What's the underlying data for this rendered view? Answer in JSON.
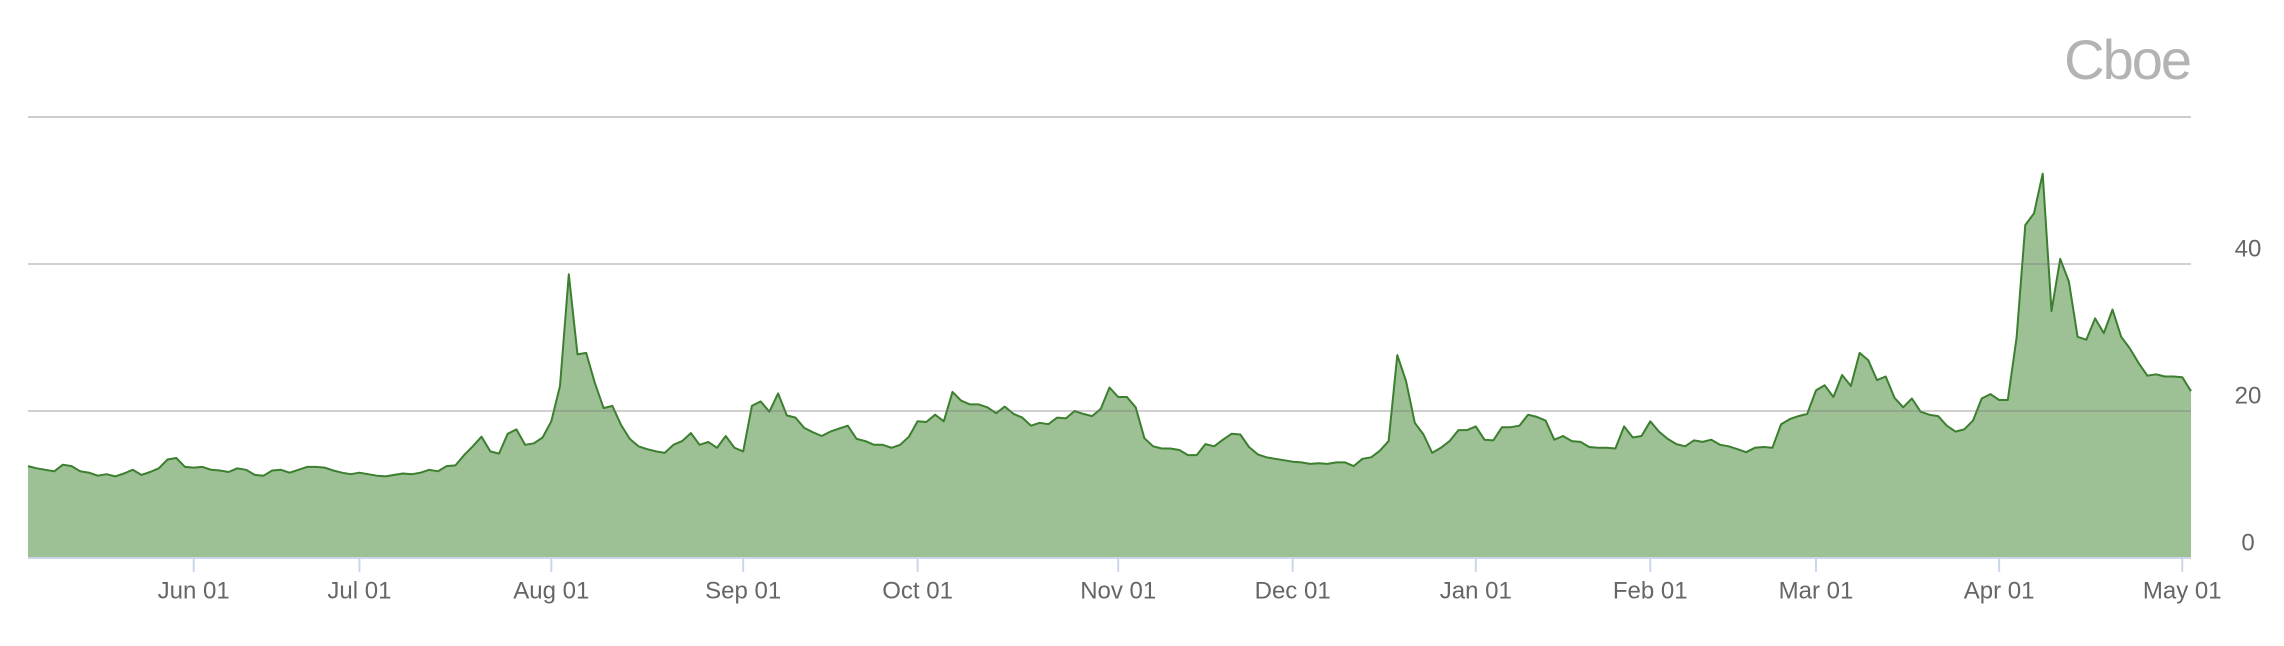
{
  "chart_data": {
    "type": "area",
    "logo": "Cboe",
    "categories": [
      null,
      null,
      null,
      null,
      null,
      null,
      null,
      null,
      null,
      null,
      null,
      null,
      null,
      null,
      null,
      null,
      null,
      null,
      null,
      "Jun 01",
      null,
      null,
      null,
      null,
      null,
      null,
      null,
      null,
      null,
      null,
      null,
      null,
      null,
      null,
      null,
      null,
      null,
      null,
      "Jul 01",
      null,
      null,
      null,
      null,
      null,
      null,
      null,
      null,
      null,
      null,
      null,
      null,
      null,
      null,
      null,
      null,
      null,
      null,
      null,
      null,
      null,
      "Aug 01",
      null,
      null,
      null,
      null,
      null,
      null,
      null,
      null,
      null,
      null,
      null,
      null,
      null,
      null,
      null,
      null,
      null,
      null,
      null,
      null,
      null,
      "Sep 01",
      null,
      null,
      null,
      null,
      null,
      null,
      null,
      null,
      null,
      null,
      null,
      null,
      null,
      null,
      null,
      null,
      null,
      null,
      null,
      "Oct 01",
      null,
      null,
      null,
      null,
      null,
      null,
      null,
      null,
      null,
      null,
      null,
      null,
      null,
      null,
      null,
      null,
      null,
      null,
      null,
      null,
      null,
      null,
      "Nov 01",
      null,
      null,
      null,
      null,
      null,
      null,
      null,
      null,
      null,
      null,
      null,
      null,
      null,
      null,
      null,
      null,
      null,
      null,
      null,
      "Dec 01",
      null,
      null,
      null,
      null,
      null,
      null,
      null,
      null,
      null,
      null,
      null,
      null,
      null,
      null,
      null,
      null,
      null,
      null,
      null,
      null,
      "Jan 01",
      null,
      null,
      null,
      null,
      null,
      null,
      null,
      null,
      null,
      null,
      null,
      null,
      null,
      null,
      null,
      null,
      null,
      null,
      null,
      "Feb 01",
      null,
      null,
      null,
      null,
      null,
      null,
      null,
      null,
      null,
      null,
      null,
      null,
      null,
      null,
      null,
      null,
      null,
      null,
      "Mar 01",
      null,
      null,
      null,
      null,
      null,
      null,
      null,
      null,
      null,
      null,
      null,
      null,
      null,
      null,
      null,
      null,
      null,
      null,
      null,
      null,
      "Apr 01",
      null,
      null,
      null,
      null,
      null,
      null,
      null,
      null,
      null,
      null,
      null,
      null,
      null,
      null,
      null,
      null,
      null,
      null,
      null,
      null,
      "May 01",
      null
    ],
    "values": [
      12.5,
      12.2,
      12.0,
      11.8,
      12.7,
      12.5,
      11.8,
      11.6,
      11.2,
      11.4,
      11.1,
      11.5,
      12.0,
      11.3,
      11.7,
      12.2,
      13.4,
      13.6,
      12.4,
      12.3,
      12.4,
      12.0,
      11.9,
      11.7,
      12.2,
      12.0,
      11.3,
      11.2,
      11.9,
      12.0,
      11.6,
      12.0,
      12.4,
      12.4,
      12.3,
      11.9,
      11.6,
      11.4,
      11.6,
      11.4,
      11.2,
      11.1,
      11.3,
      11.5,
      11.4,
      11.6,
      12.0,
      11.8,
      12.5,
      12.6,
      14.0,
      15.2,
      16.5,
      14.5,
      14.2,
      16.9,
      17.5,
      15.4,
      15.6,
      16.4,
      18.6,
      23.4,
      38.6,
      27.7,
      27.9,
      23.8,
      20.4,
      20.7,
      18.1,
      16.2,
      15.2,
      14.8,
      14.5,
      14.3,
      15.4,
      15.9,
      17.0,
      15.4,
      15.8,
      15.0,
      16.6,
      15.0,
      14.5,
      20.7,
      21.3,
      19.9,
      22.4,
      19.4,
      19.1,
      17.7,
      17.1,
      16.6,
      17.2,
      17.6,
      18.0,
      16.2,
      15.9,
      15.4,
      15.4,
      15.0,
      15.4,
      16.5,
      18.6,
      18.5,
      19.5,
      18.6,
      22.6,
      21.4,
      20.9,
      20.9,
      20.5,
      19.7,
      20.6,
      19.6,
      19.1,
      18.0,
      18.4,
      18.2,
      19.1,
      19.0,
      20.0,
      19.6,
      19.3,
      20.3,
      23.2,
      21.9,
      21.9,
      20.5,
      16.3,
      15.2,
      14.9,
      14.9,
      14.7,
      14.0,
      14.0,
      15.5,
      15.2,
      16.1,
      16.9,
      16.8,
      15.1,
      14.1,
      13.7,
      13.5,
      13.3,
      13.1,
      13.0,
      12.8,
      12.9,
      12.8,
      13.0,
      13.0,
      12.5,
      13.5,
      13.7,
      14.6,
      15.9,
      27.6,
      24.1,
      18.4,
      16.8,
      14.3,
      15.0,
      15.9,
      17.4,
      17.4,
      17.9,
      16.1,
      16.0,
      17.8,
      17.8,
      18.0,
      19.5,
      19.2,
      18.7,
      16.1,
      16.6,
      15.9,
      15.8,
      15.1,
      15.0,
      15.0,
      14.9,
      17.9,
      16.4,
      16.6,
      18.6,
      17.2,
      16.2,
      15.5,
      15.2,
      16.0,
      15.8,
      16.1,
      15.4,
      15.2,
      14.8,
      14.4,
      15.0,
      15.1,
      15.0,
      18.2,
      18.9,
      19.3,
      19.6,
      22.8,
      23.5,
      21.9,
      24.9,
      23.4,
      27.9,
      26.9,
      24.2,
      24.7,
      21.8,
      20.5,
      21.7,
      19.9,
      19.5,
      19.3,
      18.0,
      17.2,
      17.5,
      18.7,
      21.7,
      22.3,
      21.5,
      21.5,
      30.0,
      45.3,
      46.9,
      52.3,
      33.6,
      40.7,
      37.6,
      30.1,
      29.7,
      32.6,
      30.6,
      33.8,
      30.1,
      28.5,
      26.5,
      24.8,
      25.0,
      24.7,
      24.7,
      24.6,
      22.7
    ],
    "line_color": "#3b7f2f",
    "color": "#9dc095",
    "ylim": [
      0,
      60
    ],
    "yticks": [
      0,
      20,
      40
    ],
    "grid": true
  }
}
